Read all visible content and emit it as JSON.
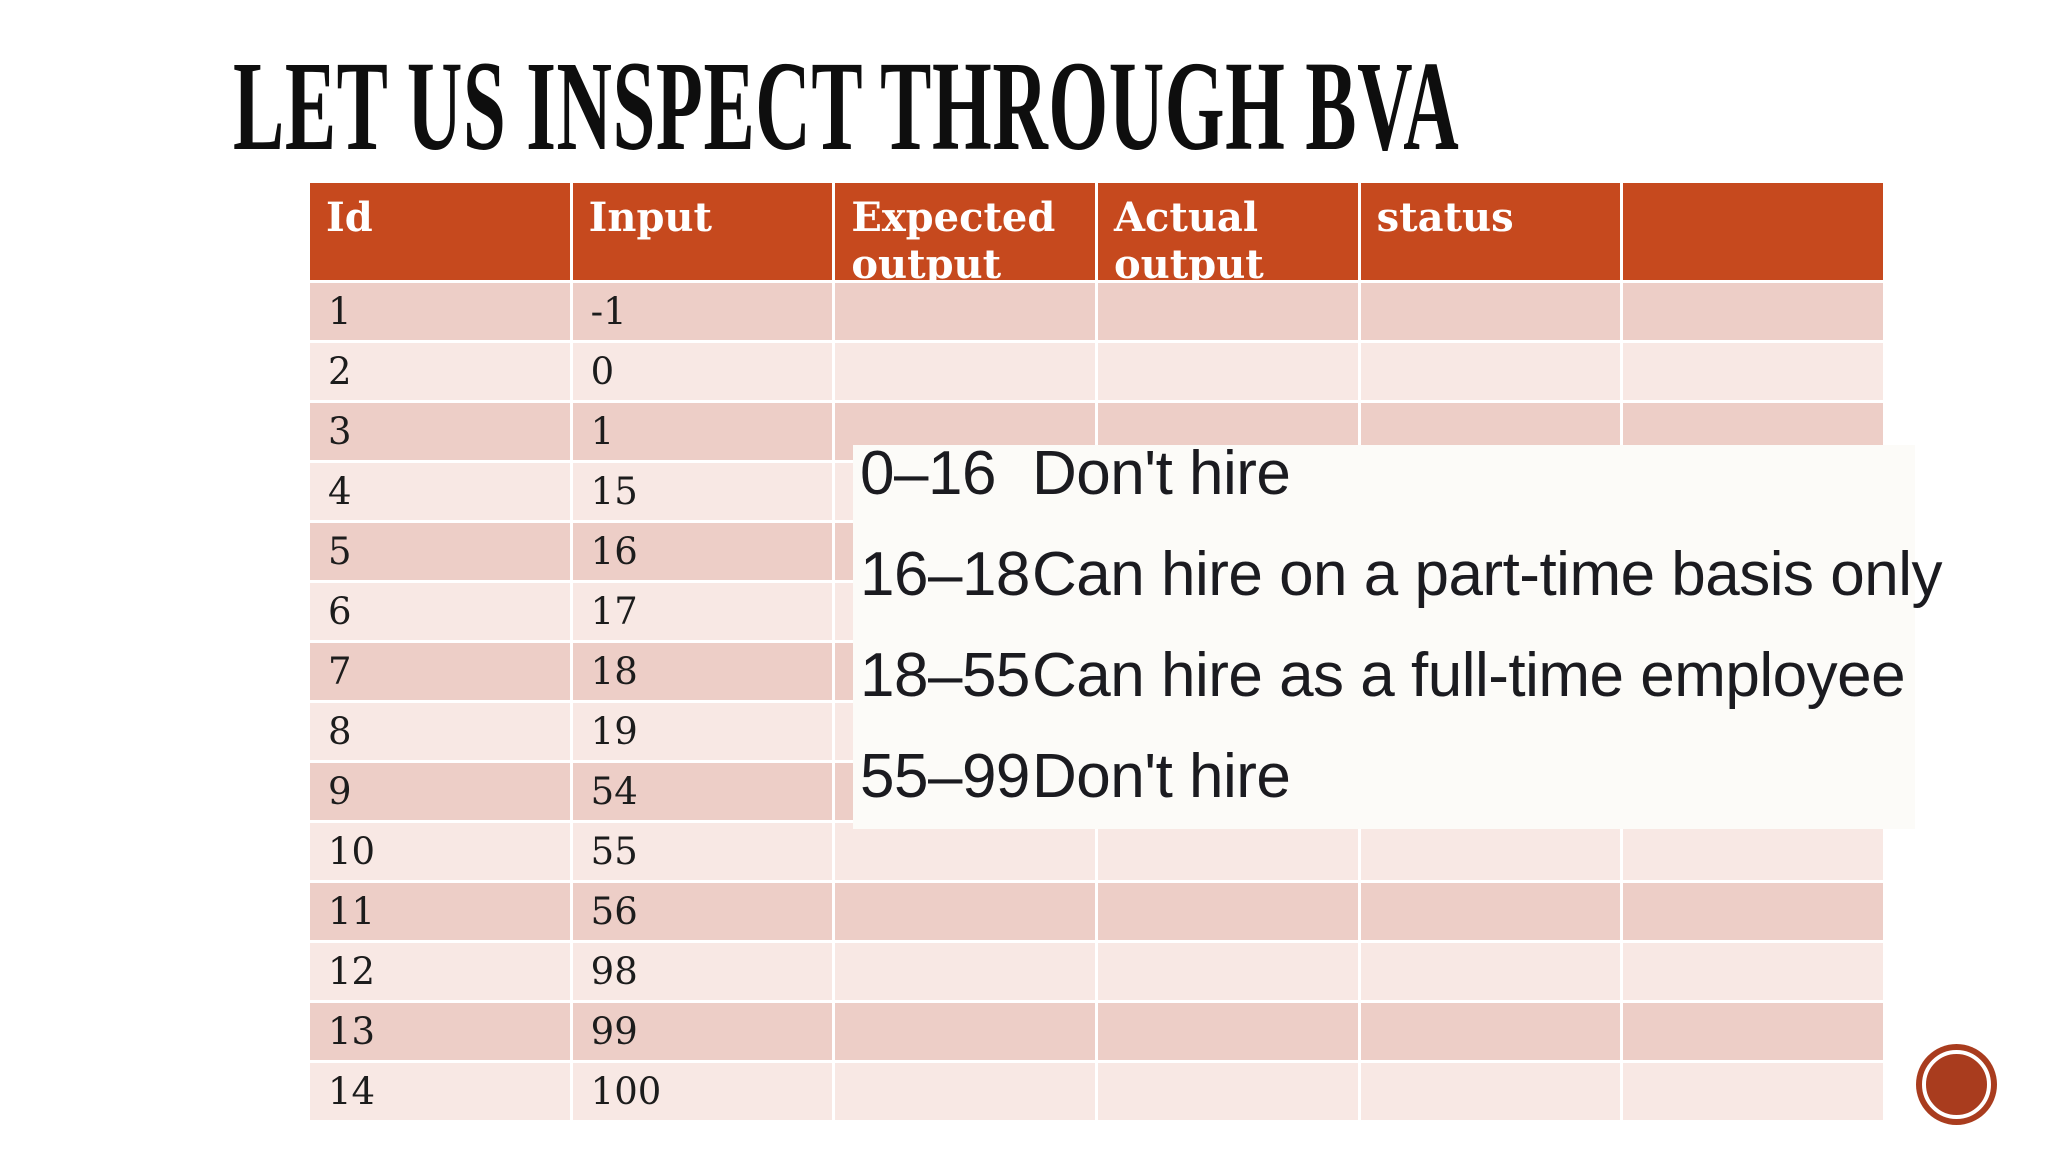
{
  "slide": {
    "title": "LET US INSPECT THROUGH BVA"
  },
  "table": {
    "headers": [
      "Id",
      "Input",
      "Expected output",
      "Actual output",
      "status",
      ""
    ],
    "rows": [
      [
        "1",
        "-1",
        "",
        "",
        "",
        ""
      ],
      [
        "2",
        "0",
        "",
        "",
        "",
        ""
      ],
      [
        "3",
        "1",
        "",
        "",
        "",
        ""
      ],
      [
        "4",
        "15",
        "",
        "",
        "",
        ""
      ],
      [
        "5",
        "16",
        "",
        "",
        "",
        ""
      ],
      [
        "6",
        "17",
        "",
        "",
        "",
        ""
      ],
      [
        "7",
        "18",
        "",
        "",
        "",
        ""
      ],
      [
        "8",
        "19",
        "",
        "",
        "",
        ""
      ],
      [
        "9",
        "54",
        "",
        "",
        "",
        ""
      ],
      [
        "10",
        "55",
        "",
        "",
        "",
        ""
      ],
      [
        "11",
        "56",
        "",
        "",
        "",
        ""
      ],
      [
        "12",
        "98",
        "",
        "",
        "",
        ""
      ],
      [
        "13",
        "99",
        "",
        "",
        "",
        ""
      ],
      [
        "14",
        "100",
        "",
        "",
        "",
        ""
      ]
    ]
  },
  "overlay": {
    "rules": [
      {
        "range": "0–16",
        "description": "Don't hire"
      },
      {
        "range": "16–18",
        "description": "Can hire on a part-time basis only"
      },
      {
        "range": "18–55",
        "description": "Can hire as a full-time employee"
      },
      {
        "range": "55–99",
        "description": "Don't hire"
      }
    ]
  },
  "colors": {
    "header_bg": "#c6491e",
    "row_odd": "#edcec7",
    "row_even": "#f8e8e4",
    "overlay_bg": "#fcfbf8",
    "circle_color": "#a93c1e",
    "title_color": "#0e0e0e",
    "body_text": "#1c1c1c",
    "overlay_text": "#1b1b20"
  }
}
